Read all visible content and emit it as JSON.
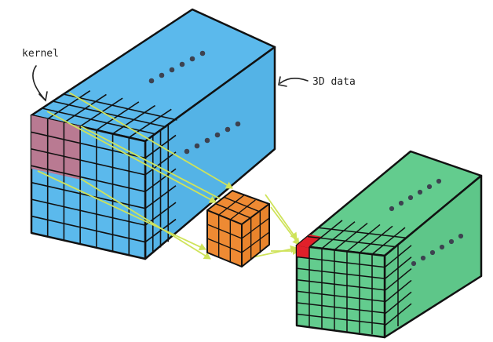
{
  "labels": {
    "kernel": "kernel",
    "data": "3D data"
  },
  "colors": {
    "input_face": "#5bb9ec",
    "input_top": "#5bb9ec",
    "input_side": "#54b3e6",
    "kernel_fill": "#b97a92",
    "filter_cube": "#ee8a33",
    "output_face": "#63cc8e",
    "output_top": "#63cc8e",
    "output_side": "#5ec689",
    "output_cell": "#e0202a",
    "projection_line": "#cfe35a",
    "grid_line": "#111111"
  },
  "icons": [
    "ellipsis-dots-icon",
    "curved-arrow-icon"
  ]
}
